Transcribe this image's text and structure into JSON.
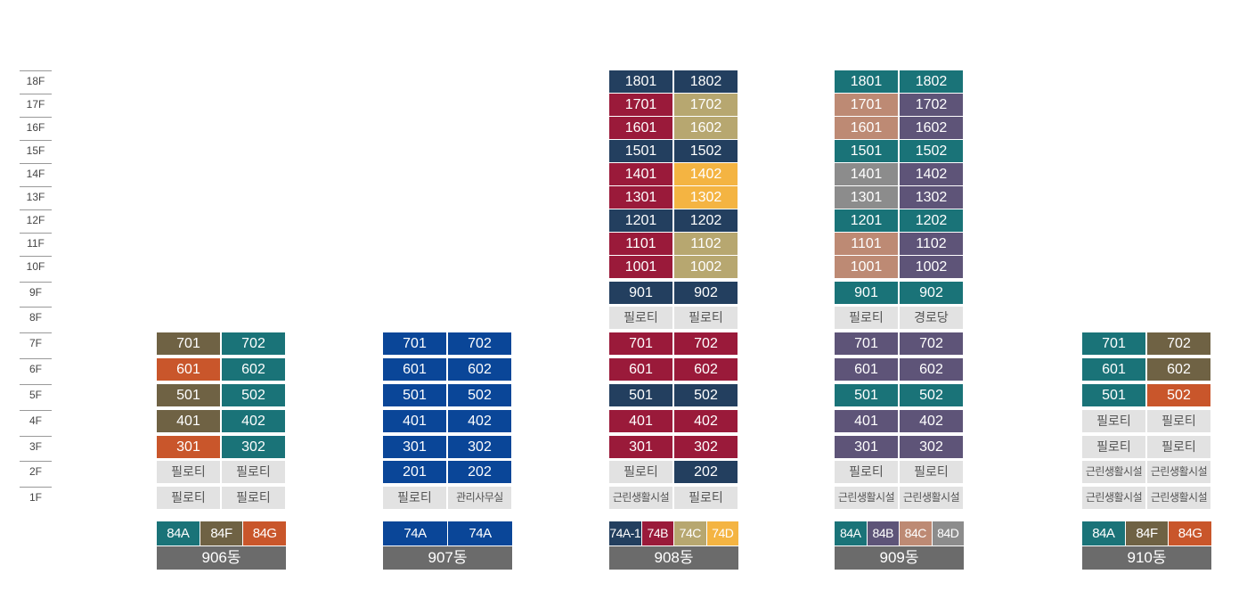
{
  "colors": {
    "olive": "#6f6244",
    "orange": "#c9562b",
    "teal": "#1a7378",
    "blue": "#0a4698",
    "navy": "#233f5f",
    "crimson": "#9a1a3a",
    "khaki": "#b7a770",
    "amber": "#f4b442",
    "purple": "#5e5478",
    "rose": "#bd8a74",
    "graytone": "#8c8c8c",
    "gray": "#e2e2e2",
    "label_bg": "#6b6b6b"
  },
  "floors": [
    "18F",
    "17F",
    "16F",
    "15F",
    "14F",
    "13F",
    "12F",
    "11F",
    "10F",
    "9F",
    "8F",
    "7F",
    "6F",
    "5F",
    "4F",
    "3F",
    "2F",
    "1F"
  ],
  "buildings": [
    {
      "name": "906동",
      "units": [
        [
          {
            "label": "701",
            "color": "olive"
          },
          {
            "label": "702",
            "color": "teal"
          }
        ],
        [
          {
            "label": "601",
            "color": "orange"
          },
          {
            "label": "602",
            "color": "teal"
          }
        ],
        [
          {
            "label": "501",
            "color": "olive"
          },
          {
            "label": "502",
            "color": "teal"
          }
        ],
        [
          {
            "label": "401",
            "color": "olive"
          },
          {
            "label": "402",
            "color": "teal"
          }
        ],
        [
          {
            "label": "301",
            "color": "orange"
          },
          {
            "label": "302",
            "color": "teal"
          }
        ],
        [
          {
            "label": "필로티",
            "color": "gray"
          },
          {
            "label": "필로티",
            "color": "gray"
          }
        ],
        [
          {
            "label": "필로티",
            "color": "gray"
          },
          {
            "label": "필로티",
            "color": "gray"
          }
        ]
      ],
      "legend": [
        {
          "label": "84A",
          "color": "teal"
        },
        {
          "label": "84F",
          "color": "olive"
        },
        {
          "label": "84G",
          "color": "orange"
        }
      ]
    },
    {
      "name": "907동",
      "units": [
        [
          {
            "label": "701",
            "color": "blue"
          },
          {
            "label": "702",
            "color": "blue"
          }
        ],
        [
          {
            "label": "601",
            "color": "blue"
          },
          {
            "label": "602",
            "color": "blue"
          }
        ],
        [
          {
            "label": "501",
            "color": "blue"
          },
          {
            "label": "502",
            "color": "blue"
          }
        ],
        [
          {
            "label": "401",
            "color": "blue"
          },
          {
            "label": "402",
            "color": "blue"
          }
        ],
        [
          {
            "label": "301",
            "color": "blue"
          },
          {
            "label": "302",
            "color": "blue"
          }
        ],
        [
          {
            "label": "201",
            "color": "blue"
          },
          {
            "label": "202",
            "color": "blue"
          }
        ],
        [
          {
            "label": "필로티",
            "color": "gray"
          },
          {
            "label": "관리사무실",
            "color": "gray"
          }
        ]
      ],
      "legend": [
        {
          "label": "74A",
          "color": "blue"
        },
        {
          "label": "74A",
          "color": "blue"
        }
      ]
    },
    {
      "name": "908동",
      "units": [
        [
          {
            "label": "1801",
            "color": "navy"
          },
          {
            "label": "1802",
            "color": "navy"
          }
        ],
        [
          {
            "label": "1701",
            "color": "crimson"
          },
          {
            "label": "1702",
            "color": "khaki"
          }
        ],
        [
          {
            "label": "1601",
            "color": "crimson"
          },
          {
            "label": "1602",
            "color": "khaki"
          }
        ],
        [
          {
            "label": "1501",
            "color": "navy"
          },
          {
            "label": "1502",
            "color": "navy"
          }
        ],
        [
          {
            "label": "1401",
            "color": "crimson"
          },
          {
            "label": "1402",
            "color": "amber"
          }
        ],
        [
          {
            "label": "1301",
            "color": "crimson"
          },
          {
            "label": "1302",
            "color": "amber"
          }
        ],
        [
          {
            "label": "1201",
            "color": "navy"
          },
          {
            "label": "1202",
            "color": "navy"
          }
        ],
        [
          {
            "label": "1101",
            "color": "crimson"
          },
          {
            "label": "1102",
            "color": "khaki"
          }
        ],
        [
          {
            "label": "1001",
            "color": "crimson"
          },
          {
            "label": "1002",
            "color": "khaki"
          }
        ],
        [
          {
            "label": "901",
            "color": "navy"
          },
          {
            "label": "902",
            "color": "navy"
          }
        ],
        [
          {
            "label": "필로티",
            "color": "gray"
          },
          {
            "label": "필로티",
            "color": "gray"
          }
        ],
        [
          {
            "label": "701",
            "color": "crimson"
          },
          {
            "label": "702",
            "color": "crimson"
          }
        ],
        [
          {
            "label": "601",
            "color": "crimson"
          },
          {
            "label": "602",
            "color": "crimson"
          }
        ],
        [
          {
            "label": "501",
            "color": "navy"
          },
          {
            "label": "502",
            "color": "navy"
          }
        ],
        [
          {
            "label": "401",
            "color": "crimson"
          },
          {
            "label": "402",
            "color": "crimson"
          }
        ],
        [
          {
            "label": "301",
            "color": "crimson"
          },
          {
            "label": "302",
            "color": "crimson"
          }
        ],
        [
          {
            "label": "필로티",
            "color": "gray"
          },
          {
            "label": "202",
            "color": "navy"
          }
        ],
        [
          {
            "label": "근린생활시설",
            "color": "gray"
          },
          {
            "label": "필로티",
            "color": "gray"
          }
        ]
      ],
      "legend": [
        {
          "label": "74A-1",
          "color": "navy"
        },
        {
          "label": "74B",
          "color": "crimson"
        },
        {
          "label": "74C",
          "color": "khaki"
        },
        {
          "label": "74D",
          "color": "amber"
        }
      ]
    },
    {
      "name": "909동",
      "units": [
        [
          {
            "label": "1801",
            "color": "teal"
          },
          {
            "label": "1802",
            "color": "teal"
          }
        ],
        [
          {
            "label": "1701",
            "color": "rose"
          },
          {
            "label": "1702",
            "color": "purple"
          }
        ],
        [
          {
            "label": "1601",
            "color": "rose"
          },
          {
            "label": "1602",
            "color": "purple"
          }
        ],
        [
          {
            "label": "1501",
            "color": "teal"
          },
          {
            "label": "1502",
            "color": "teal"
          }
        ],
        [
          {
            "label": "1401",
            "color": "graytone"
          },
          {
            "label": "1402",
            "color": "purple"
          }
        ],
        [
          {
            "label": "1301",
            "color": "graytone"
          },
          {
            "label": "1302",
            "color": "purple"
          }
        ],
        [
          {
            "label": "1201",
            "color": "teal"
          },
          {
            "label": "1202",
            "color": "teal"
          }
        ],
        [
          {
            "label": "1101",
            "color": "rose"
          },
          {
            "label": "1102",
            "color": "purple"
          }
        ],
        [
          {
            "label": "1001",
            "color": "rose"
          },
          {
            "label": "1002",
            "color": "purple"
          }
        ],
        [
          {
            "label": "901",
            "color": "teal"
          },
          {
            "label": "902",
            "color": "teal"
          }
        ],
        [
          {
            "label": "필로티",
            "color": "gray"
          },
          {
            "label": "경로당",
            "color": "gray"
          }
        ],
        [
          {
            "label": "701",
            "color": "purple"
          },
          {
            "label": "702",
            "color": "purple"
          }
        ],
        [
          {
            "label": "601",
            "color": "purple"
          },
          {
            "label": "602",
            "color": "purple"
          }
        ],
        [
          {
            "label": "501",
            "color": "teal"
          },
          {
            "label": "502",
            "color": "teal"
          }
        ],
        [
          {
            "label": "401",
            "color": "purple"
          },
          {
            "label": "402",
            "color": "purple"
          }
        ],
        [
          {
            "label": "301",
            "color": "purple"
          },
          {
            "label": "302",
            "color": "purple"
          }
        ],
        [
          {
            "label": "필로티",
            "color": "gray"
          },
          {
            "label": "필로티",
            "color": "gray"
          }
        ],
        [
          {
            "label": "근린생활시설",
            "color": "gray"
          },
          {
            "label": "근린생활시설",
            "color": "gray"
          }
        ]
      ],
      "legend": [
        {
          "label": "84A",
          "color": "teal"
        },
        {
          "label": "84B",
          "color": "purple"
        },
        {
          "label": "84C",
          "color": "rose"
        },
        {
          "label": "84D",
          "color": "graytone"
        }
      ]
    },
    {
      "name": "910동",
      "units": [
        [
          {
            "label": "701",
            "color": "teal"
          },
          {
            "label": "702",
            "color": "olive"
          }
        ],
        [
          {
            "label": "601",
            "color": "teal"
          },
          {
            "label": "602",
            "color": "olive"
          }
        ],
        [
          {
            "label": "501",
            "color": "teal"
          },
          {
            "label": "502",
            "color": "orange"
          }
        ],
        [
          {
            "label": "필로티",
            "color": "gray"
          },
          {
            "label": "필로티",
            "color": "gray"
          }
        ],
        [
          {
            "label": "필로티",
            "color": "gray"
          },
          {
            "label": "필로티",
            "color": "gray"
          }
        ],
        [
          {
            "label": "근린생활시설",
            "color": "gray"
          },
          {
            "label": "근린생활시설",
            "color": "gray"
          }
        ],
        [
          {
            "label": "근린생활시설",
            "color": "gray"
          },
          {
            "label": "근린생활시설",
            "color": "gray"
          }
        ]
      ],
      "legend": [
        {
          "label": "84A",
          "color": "teal"
        },
        {
          "label": "84F",
          "color": "olive"
        },
        {
          "label": "84G",
          "color": "orange"
        }
      ]
    }
  ]
}
